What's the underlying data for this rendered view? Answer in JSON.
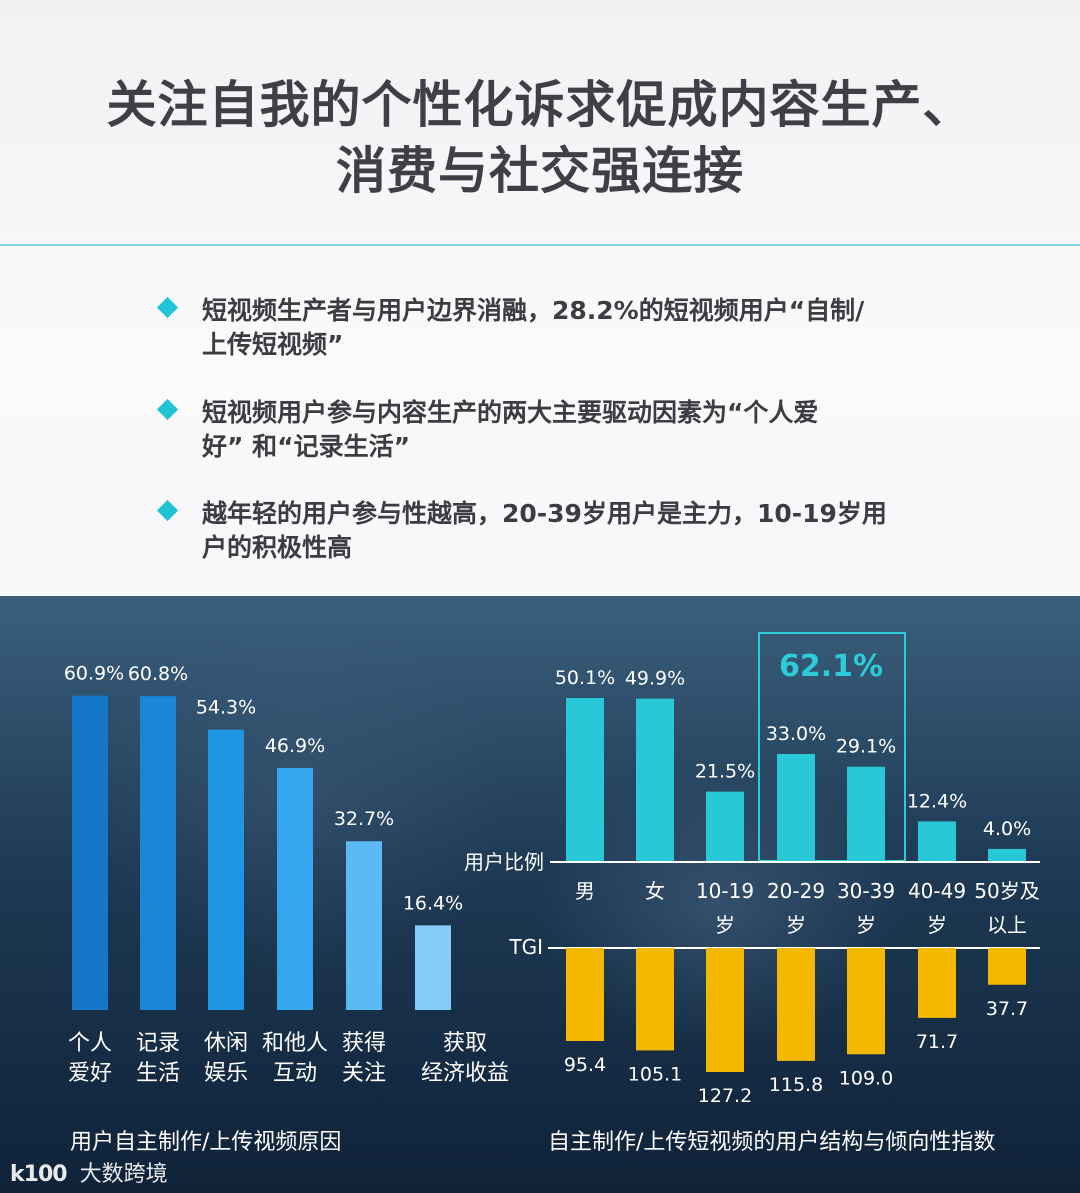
{
  "title_line1": "关注自我的个性化诉求促成内容生产、",
  "title_line2": "消费与社交强连接",
  "bullets": [
    {
      "line1": "短视频生产者与用户边界消融，28.2%的短视频用户“自制/",
      "line2": "上传短视频”"
    },
    {
      "line1": "短视频用户参与内容生产的两大主要驱动因素为“个人爱",
      "line2": "好” 和“记录生活”"
    },
    {
      "line1": "越年轻的用户参与性越高，20-39岁用户是主力，10-19岁用",
      "line2": "户的积极性高"
    }
  ],
  "colors": {
    "accent": "#1fc4d6",
    "cyan_bar": "#29c8d6",
    "tgi_bar": "#f5b800",
    "bg_dark": "#1f3a55"
  },
  "chart_data": [
    {
      "type": "bar",
      "title": "用户自主制作/上传视频原因",
      "categories": [
        [
          "个人",
          "爱好"
        ],
        [
          "记录",
          "生活"
        ],
        [
          "休闲",
          "娱乐"
        ],
        [
          "和他人",
          "互动"
        ],
        [
          "获得",
          "关注"
        ],
        [
          "获取",
          "经济收益"
        ]
      ],
      "values": [
        60.9,
        60.8,
        54.3,
        46.9,
        32.7,
        16.4
      ],
      "value_labels": [
        "60.9%",
        "60.8%",
        "54.3%",
        "46.9%",
        "32.7%",
        "16.4%"
      ],
      "bar_colors": [
        "#1677c9",
        "#1986d6",
        "#1e96e4",
        "#34a6ee",
        "#5bb9f4",
        "#83cdf8"
      ],
      "ylim": [
        0,
        62
      ],
      "grid": false
    },
    {
      "type": "bar",
      "title": "自主制作/上传短视频的用户结构与倾向性指数",
      "categories": [
        [
          "男"
        ],
        [
          "女"
        ],
        [
          "10-19",
          "岁"
        ],
        [
          "20-29",
          "岁"
        ],
        [
          "30-39",
          "岁"
        ],
        [
          "40-49",
          "岁"
        ],
        [
          "50岁及",
          "以上"
        ]
      ],
      "series": [
        {
          "name": "用户比例",
          "values": [
            50.1,
            49.9,
            21.5,
            33.0,
            29.1,
            12.4,
            4.0
          ],
          "labels": [
            "50.1%",
            "49.9%",
            "21.5%",
            "33.0%",
            "29.1%",
            "12.4%",
            "4.0%"
          ]
        },
        {
          "name": "TGI",
          "values": [
            95.4,
            105.1,
            127.2,
            115.8,
            109.0,
            71.7,
            37.7
          ],
          "labels": [
            "95.4",
            "105.1",
            "127.2",
            "115.8",
            "109.0",
            "71.7",
            "37.7"
          ]
        }
      ],
      "highlight": {
        "label": "62.1%",
        "categories": [
          "20-29",
          "30-39"
        ]
      },
      "ylim_share": [
        0,
        52
      ],
      "ylim_tgi": [
        0,
        130
      ],
      "grid": false
    }
  ],
  "watermark": {
    "mark": "k100",
    "text": "大数跨境"
  }
}
